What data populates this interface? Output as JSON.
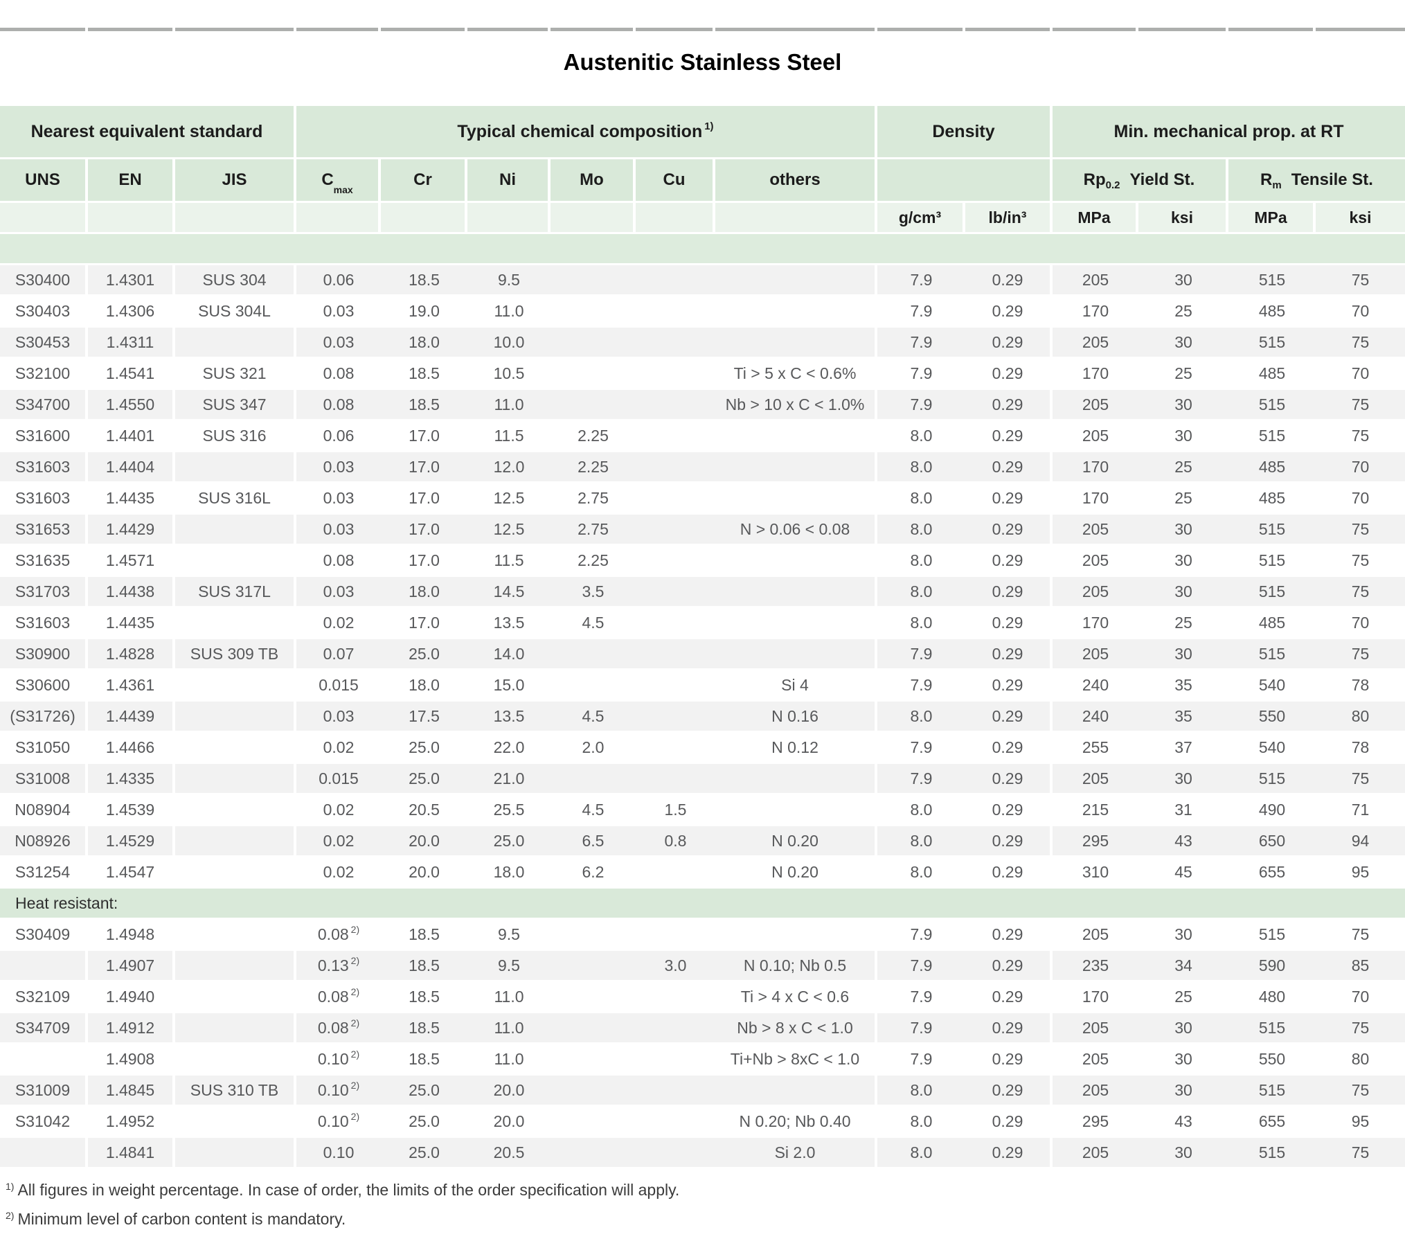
{
  "title": "Austenitic Stainless Steel",
  "colors": {
    "header_green": "#d9e9d9",
    "units_pale_green": "#ebf3eb",
    "spacer_green": "#ddecdd",
    "stripe_gray": "#f2f2f2",
    "data_text": "#57585a",
    "header_text": "#1c1c1c"
  },
  "header": {
    "groups": {
      "standard": "Nearest equivalent standard",
      "chem": "Typical chemical composition",
      "chem_sup": "1)",
      "density": "Density",
      "mech": "Min. mechanical prop. at RT"
    },
    "columns": {
      "uns": "UNS",
      "en": "EN",
      "jis": "JIS",
      "c": "C",
      "c_sub": "max",
      "cr": "Cr",
      "ni": "Ni",
      "mo": "Mo",
      "cu": "Cu",
      "others": "others",
      "rp": "Rp",
      "rp_sub": "0.2",
      "yield": "Yield St.",
      "rm": "R",
      "rm_sub": "m",
      "tensile": "Tensile St."
    },
    "units": {
      "gcm": "g/cm³",
      "lbin": "lb/in³",
      "mpa1": "MPa",
      "ksi1": "ksi",
      "mpa2": "MPa",
      "ksi2": "ksi"
    }
  },
  "sections": [
    {
      "label": "",
      "start_stripe": "gray",
      "rows": [
        [
          "S30400",
          "1.4301",
          "SUS 304",
          "0.06",
          "",
          "18.5",
          "9.5",
          "",
          "",
          "",
          "7.9",
          "0.29",
          "205",
          "30",
          "515",
          "75"
        ],
        [
          "S30403",
          "1.4306",
          "SUS 304L",
          "0.03",
          "",
          "19.0",
          "11.0",
          "",
          "",
          "",
          "7.9",
          "0.29",
          "170",
          "25",
          "485",
          "70"
        ],
        [
          "S30453",
          "1.4311",
          "",
          "0.03",
          "",
          "18.0",
          "10.0",
          "",
          "",
          "",
          "7.9",
          "0.29",
          "205",
          "30",
          "515",
          "75"
        ],
        [
          "S32100",
          "1.4541",
          "SUS 321",
          "0.08",
          "",
          "18.5",
          "10.5",
          "",
          "",
          "Ti > 5 x C < 0.6%",
          "7.9",
          "0.29",
          "170",
          "25",
          "485",
          "70"
        ],
        [
          "S34700",
          "1.4550",
          "SUS 347",
          "0.08",
          "",
          "18.5",
          "11.0",
          "",
          "",
          "Nb > 10 x C < 1.0%",
          "7.9",
          "0.29",
          "205",
          "30",
          "515",
          "75"
        ],
        [
          "S31600",
          "1.4401",
          "SUS 316",
          "0.06",
          "",
          "17.0",
          "11.5",
          "2.25",
          "",
          "",
          "8.0",
          "0.29",
          "205",
          "30",
          "515",
          "75"
        ],
        [
          "S31603",
          "1.4404",
          "",
          "0.03",
          "",
          "17.0",
          "12.0",
          "2.25",
          "",
          "",
          "8.0",
          "0.29",
          "170",
          "25",
          "485",
          "70"
        ],
        [
          "S31603",
          "1.4435",
          "SUS 316L",
          "0.03",
          "",
          "17.0",
          "12.5",
          "2.75",
          "",
          "",
          "8.0",
          "0.29",
          "170",
          "25",
          "485",
          "70"
        ],
        [
          "S31653",
          "1.4429",
          "",
          "0.03",
          "",
          "17.0",
          "12.5",
          "2.75",
          "",
          "N > 0.06 < 0.08",
          "8.0",
          "0.29",
          "205",
          "30",
          "515",
          "75"
        ],
        [
          "S31635",
          "1.4571",
          "",
          "0.08",
          "",
          "17.0",
          "11.5",
          "2.25",
          "",
          "",
          "8.0",
          "0.29",
          "205",
          "30",
          "515",
          "75"
        ],
        [
          "S31703",
          "1.4438",
          "SUS 317L",
          "0.03",
          "",
          "18.0",
          "14.5",
          "3.5",
          "",
          "",
          "8.0",
          "0.29",
          "205",
          "30",
          "515",
          "75"
        ],
        [
          "S31603",
          "1.4435",
          "",
          "0.02",
          "",
          "17.0",
          "13.5",
          "4.5",
          "",
          "",
          "8.0",
          "0.29",
          "170",
          "25",
          "485",
          "70"
        ],
        [
          "S30900",
          "1.4828",
          "SUS 309 TB",
          "0.07",
          "",
          "25.0",
          "14.0",
          "",
          "",
          "",
          "7.9",
          "0.29",
          "205",
          "30",
          "515",
          "75"
        ],
        [
          "S30600",
          "1.4361",
          "",
          "0.015",
          "",
          "18.0",
          "15.0",
          "",
          "",
          "Si 4",
          "7.9",
          "0.29",
          "240",
          "35",
          "540",
          "78"
        ],
        [
          "(S31726)",
          "1.4439",
          "",
          "0.03",
          "",
          "17.5",
          "13.5",
          "4.5",
          "",
          "N 0.16",
          "8.0",
          "0.29",
          "240",
          "35",
          "550",
          "80"
        ],
        [
          "S31050",
          "1.4466",
          "",
          "0.02",
          "",
          "25.0",
          "22.0",
          "2.0",
          "",
          "N 0.12",
          "7.9",
          "0.29",
          "255",
          "37",
          "540",
          "78"
        ],
        [
          "S31008",
          "1.4335",
          "",
          "0.015",
          "",
          "25.0",
          "21.0",
          "",
          "",
          "",
          "7.9",
          "0.29",
          "205",
          "30",
          "515",
          "75"
        ],
        [
          "N08904",
          "1.4539",
          "",
          "0.02",
          "",
          "20.5",
          "25.5",
          "4.5",
          "1.5",
          "",
          "8.0",
          "0.29",
          "215",
          "31",
          "490",
          "71"
        ],
        [
          "N08926",
          "1.4529",
          "",
          "0.02",
          "",
          "20.0",
          "25.0",
          "6.5",
          "0.8",
          "N 0.20",
          "8.0",
          "0.29",
          "295",
          "43",
          "650",
          "94"
        ],
        [
          "S31254",
          "1.4547",
          "",
          "0.02",
          "",
          "20.0",
          "18.0",
          "6.2",
          "",
          "N 0.20",
          "8.0",
          "0.29",
          "310",
          "45",
          "655",
          "95"
        ]
      ]
    },
    {
      "label": "Heat resistant:",
      "start_stripe": "white",
      "rows": [
        [
          "S30409",
          "1.4948",
          "",
          "0.08",
          "2)",
          "18.5",
          "9.5",
          "",
          "",
          "",
          "7.9",
          "0.29",
          "205",
          "30",
          "515",
          "75"
        ],
        [
          "",
          "1.4907",
          "",
          "0.13",
          "2)",
          "18.5",
          "9.5",
          "",
          "3.0",
          "N 0.10; Nb 0.5",
          "7.9",
          "0.29",
          "235",
          "34",
          "590",
          "85"
        ],
        [
          "S32109",
          "1.4940",
          "",
          "0.08",
          "2)",
          "18.5",
          "11.0",
          "",
          "",
          "Ti > 4 x C < 0.6",
          "7.9",
          "0.29",
          "170",
          "25",
          "480",
          "70"
        ],
        [
          "S34709",
          "1.4912",
          "",
          "0.08",
          "2)",
          "18.5",
          "11.0",
          "",
          "",
          "Nb > 8 x C < 1.0",
          "7.9",
          "0.29",
          "205",
          "30",
          "515",
          "75"
        ],
        [
          "",
          "1.4908",
          "",
          "0.10",
          "2)",
          "18.5",
          "11.0",
          "",
          "",
          "Ti+Nb > 8xC < 1.0",
          "7.9",
          "0.29",
          "205",
          "30",
          "550",
          "80"
        ],
        [
          "S31009",
          "1.4845",
          "SUS 310 TB",
          "0.10",
          "2)",
          "25.0",
          "20.0",
          "",
          "",
          "",
          "8.0",
          "0.29",
          "205",
          "30",
          "515",
          "75"
        ],
        [
          "S31042",
          "1.4952",
          "",
          "0.10",
          "2)",
          "25.0",
          "20.0",
          "",
          "",
          "N 0.20; Nb 0.40",
          "8.0",
          "0.29",
          "295",
          "43",
          "655",
          "95"
        ],
        [
          "",
          "1.4841",
          "",
          "0.10",
          "",
          "25.0",
          "20.5",
          "",
          "",
          "Si 2.0",
          "8.0",
          "0.29",
          "205",
          "30",
          "515",
          "75"
        ]
      ]
    }
  ],
  "footnotes": [
    {
      "sup": "1)",
      "text": "All figures in weight percentage. In case of order, the limits of the order specification will apply."
    },
    {
      "sup": "2)",
      "text": "Minimum level of carbon content is mandatory."
    }
  ]
}
